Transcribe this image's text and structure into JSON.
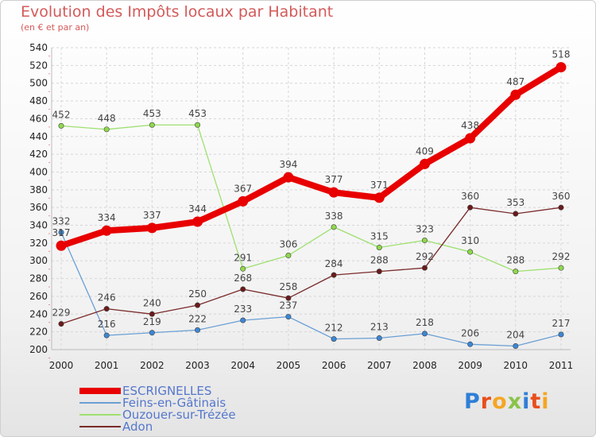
{
  "title": "Evolution des Impôts locaux par Habitant",
  "subtitle": "(en € et par an)",
  "logo": {
    "letters": [
      "P",
      "r",
      "o",
      "x",
      "i",
      "t",
      "i"
    ],
    "colors": [
      "#2f7fd6",
      "#e94e1b",
      "#f5a623",
      "#8bc34a",
      "#2f7fd6",
      "#e94e1b",
      "#f5a623"
    ]
  },
  "chart_data": {
    "type": "line",
    "x": [
      "2000",
      "2001",
      "2002",
      "2003",
      "2004",
      "2005",
      "2006",
      "2007",
      "2008",
      "2009",
      "2010",
      "2011"
    ],
    "ylim": [
      200,
      540
    ],
    "yticks": [
      200,
      220,
      240,
      260,
      280,
      300,
      320,
      340,
      360,
      380,
      400,
      420,
      440,
      460,
      480,
      500,
      520,
      540
    ],
    "grid": true,
    "legend_position": "bottom-left",
    "series": [
      {
        "name": "ESCRIGNELLES",
        "color": "#e80000",
        "marker": "#e80000",
        "width": 8,
        "values": [
          317,
          334,
          337,
          344,
          367,
          394,
          377,
          371,
          409,
          438,
          487,
          518
        ]
      },
      {
        "name": "Feins-en-Gâtinais",
        "color": "#6a9fd4",
        "marker": "#3b87d6",
        "width": 1.3,
        "values": [
          332,
          216,
          219,
          222,
          233,
          237,
          212,
          213,
          218,
          206,
          204,
          217
        ]
      },
      {
        "name": "Ouzouer-sur-Trézée",
        "color": "#9ee070",
        "marker": "#8fd84a",
        "width": 1.3,
        "values": [
          452,
          448,
          453,
          453,
          291,
          306,
          338,
          315,
          323,
          310,
          288,
          292
        ]
      },
      {
        "name": "Adon",
        "color": "#7a2a2a",
        "marker": "#6b1a1a",
        "width": 1.3,
        "values": [
          229,
          246,
          240,
          250,
          268,
          258,
          284,
          288,
          292,
          360,
          353,
          360
        ]
      }
    ]
  }
}
